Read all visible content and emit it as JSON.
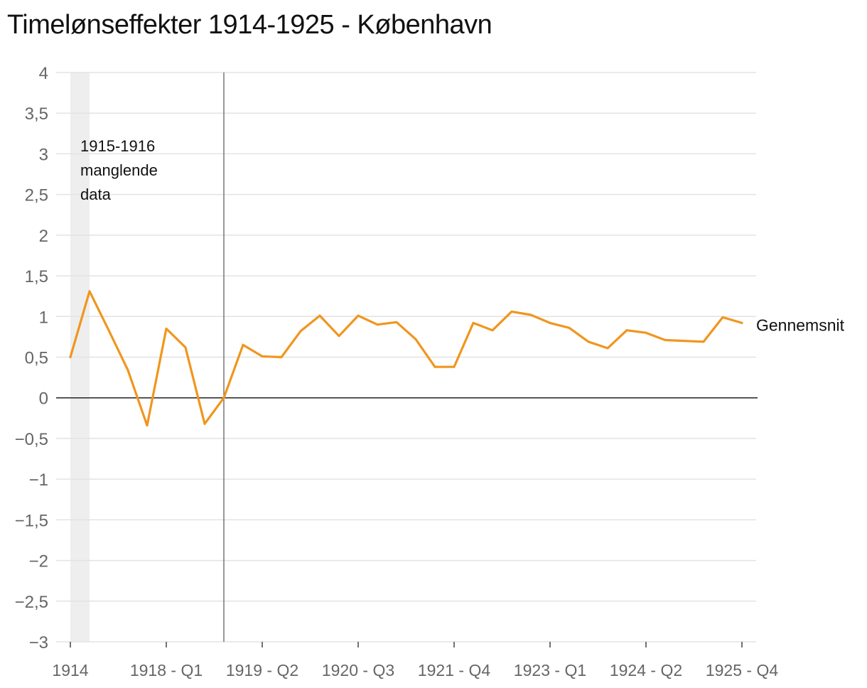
{
  "title": "Timelønseffekter 1914-1925 - København",
  "colors": {
    "line": "#F0961E",
    "grid": "#E3E3E3",
    "axis": "#222222",
    "shade": "#EEEEEE",
    "tick_text": "#666666"
  },
  "chart_data": {
    "type": "line",
    "title": "Timelønseffekter 1914-1925 - København",
    "xlabel": "",
    "ylabel": "",
    "ylim": [
      -3,
      4
    ],
    "y_ticks": [
      4,
      3.5,
      3,
      2.5,
      2,
      1.5,
      1,
      0.5,
      0,
      -0.5,
      -1,
      -1.5,
      -2,
      -2.5,
      -3
    ],
    "y_tick_labels": [
      "4",
      "3,5",
      "3",
      "2,5",
      "2",
      "1,5",
      "1",
      "0,5",
      "0",
      "−0,5",
      "−1",
      "−1,5",
      "−2",
      "−2,5",
      "−3"
    ],
    "x_tick_labels": [
      {
        "index": 0,
        "label": "1914"
      },
      {
        "index": 5,
        "label": "1918 - Q1"
      },
      {
        "index": 10,
        "label": "1919 - Q2"
      },
      {
        "index": 15,
        "label": "1920 - Q3"
      },
      {
        "index": 20,
        "label": "1921 - Q4"
      },
      {
        "index": 25,
        "label": "1923 - Q1"
      },
      {
        "index": 30,
        "label": "1924 - Q2"
      },
      {
        "index": 35,
        "label": "1925 - Q4"
      }
    ],
    "series": [
      {
        "name": "Gennemsnit",
        "values": [
          0.5,
          1.31,
          0.83,
          0.34,
          -0.34,
          0.85,
          0.62,
          -0.32,
          0.0,
          0.65,
          0.51,
          0.5,
          0.82,
          1.01,
          0.76,
          1.01,
          0.9,
          0.93,
          0.72,
          0.38,
          0.38,
          0.92,
          0.83,
          1.06,
          1.02,
          0.92,
          0.86,
          0.69,
          0.61,
          0.83,
          0.8,
          0.71,
          0.7,
          0.69,
          0.99,
          0.92
        ]
      }
    ],
    "shaded_region": {
      "from_index": 0,
      "to_index": 1,
      "label": [
        "1915-1916",
        "manglende",
        "data"
      ]
    },
    "vertical_line_index": 8,
    "zero_line": 0
  }
}
